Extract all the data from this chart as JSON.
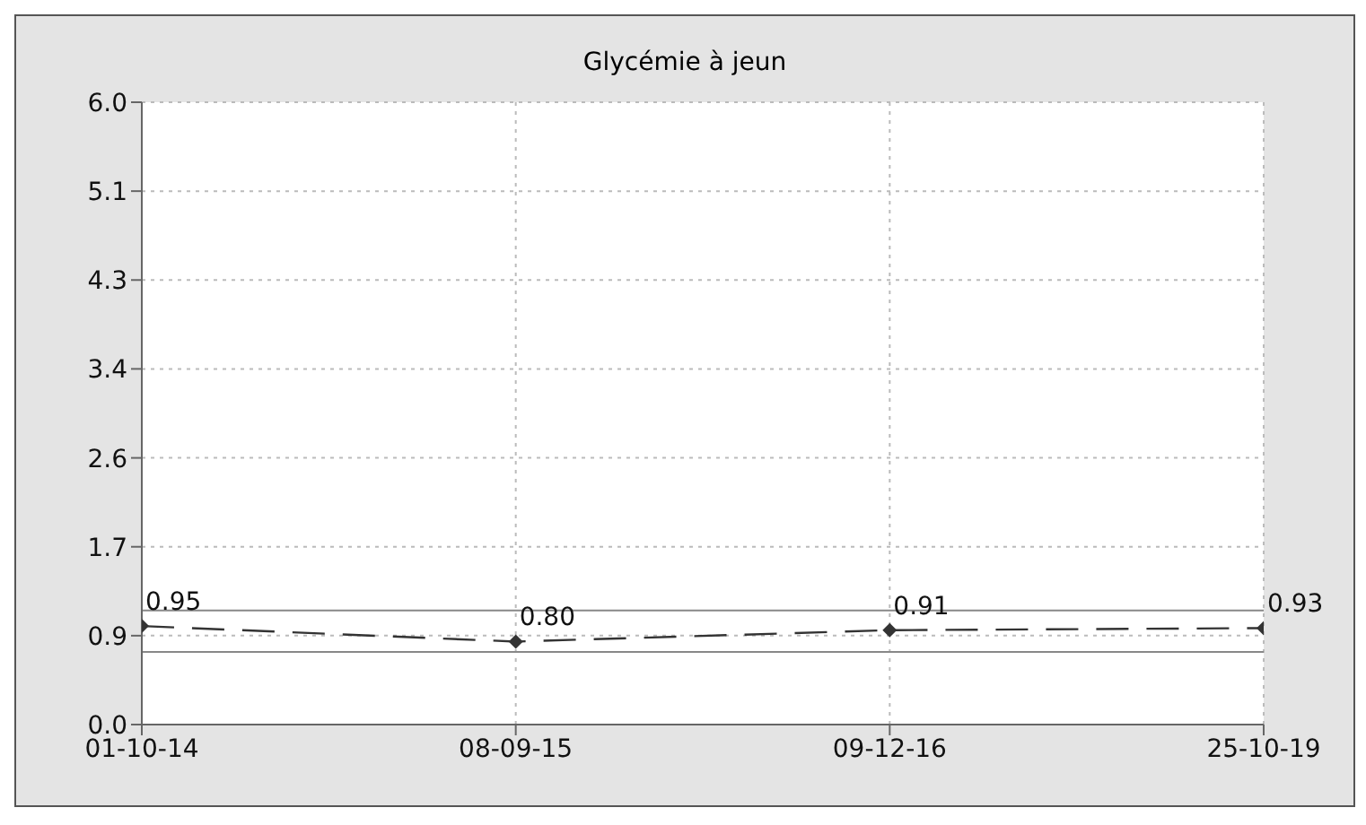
{
  "chart_data": {
    "type": "line",
    "title": "Glycémie à jeun",
    "categories": [
      "01-10-14",
      "08-09-15",
      "09-12-16",
      "25-10-19"
    ],
    "series": [
      {
        "color": "#333333",
        "values": [
          0.95,
          0.8,
          0.91,
          0.93
        ],
        "value_labels": [
          "0.95",
          "0.80",
          "0.91",
          "0.93"
        ]
      }
    ],
    "ylim": [
      0,
      6
    ],
    "yticks": [
      {
        "value": 0,
        "label": "0.0"
      },
      {
        "value": 0.857,
        "label": "0.9"
      },
      {
        "value": 1.714,
        "label": "1.7"
      },
      {
        "value": 2.571,
        "label": "2.6"
      },
      {
        "value": 3.429,
        "label": "3.4"
      },
      {
        "value": 4.286,
        "label": "4.3"
      },
      {
        "value": 5.143,
        "label": "5.1"
      },
      {
        "value": 6,
        "label": "6.0"
      }
    ],
    "ref_lines": [
      {
        "axis": "y",
        "value": 1.1,
        "color": "#888888"
      },
      {
        "axis": "y",
        "value": 0.7,
        "color": "#888888"
      }
    ],
    "grid": true,
    "marker": "diamond",
    "line_style": "dashed",
    "legend": false
  }
}
